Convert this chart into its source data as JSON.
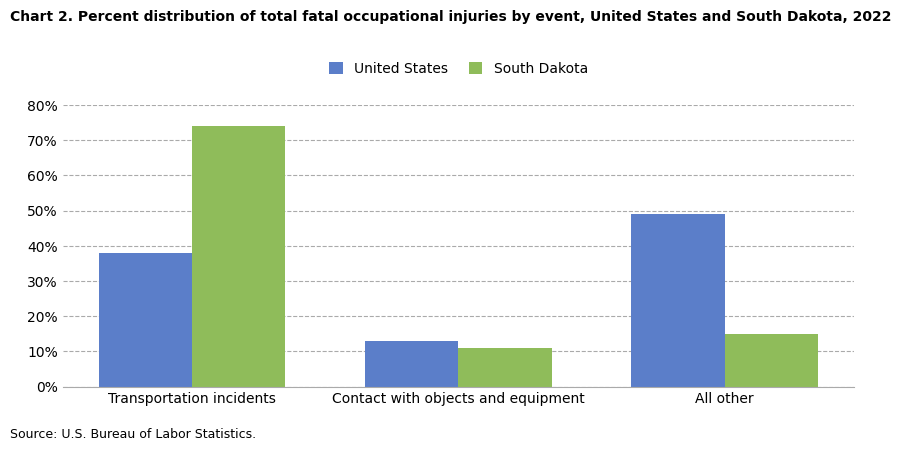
{
  "title": "Chart 2. Percent distribution of total fatal occupational injuries by event, United States and South Dakota, 2022",
  "categories": [
    "Transportation incidents",
    "Contact with objects and equipment",
    "All other"
  ],
  "us_values": [
    38,
    13,
    49
  ],
  "sd_values": [
    74,
    11,
    15
  ],
  "us_color": "#5b7ec9",
  "sd_color": "#8fbc5a",
  "us_label": "United States",
  "sd_label": "South Dakota",
  "ylim": [
    0,
    80
  ],
  "yticks": [
    0,
    10,
    20,
    30,
    40,
    50,
    60,
    70,
    80
  ],
  "source_text": "Source: U.S. Bureau of Labor Statistics.",
  "bar_width": 0.35,
  "figsize": [
    8.79,
    4.54
  ],
  "dpi": 100
}
